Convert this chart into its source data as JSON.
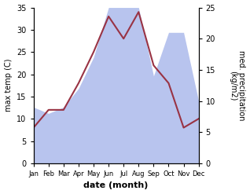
{
  "months": [
    "Jan",
    "Feb",
    "Mar",
    "Apr",
    "May",
    "Jun",
    "Jul",
    "Aug",
    "Sep",
    "Oct",
    "Nov",
    "Dec"
  ],
  "temperature": [
    8,
    12,
    12,
    18,
    25,
    33,
    28,
    34,
    22,
    18,
    8,
    10
  ],
  "precipitation": [
    9,
    8,
    9,
    12,
    17,
    25,
    25,
    25,
    14,
    21,
    21,
    10
  ],
  "temp_color": "#993344",
  "precip_color_fill": "#b8c4ee",
  "title": "",
  "xlabel": "date (month)",
  "ylabel_left": "max temp (C)",
  "ylabel_right": "med. precipitation\n(kg/m2)",
  "ylim_left": [
    0,
    35
  ],
  "ylim_right": [
    0,
    25
  ],
  "yticks_left": [
    0,
    5,
    10,
    15,
    20,
    25,
    30,
    35
  ],
  "yticks_right": [
    0,
    5,
    10,
    15,
    20,
    25
  ],
  "bg_color": "#ffffff"
}
